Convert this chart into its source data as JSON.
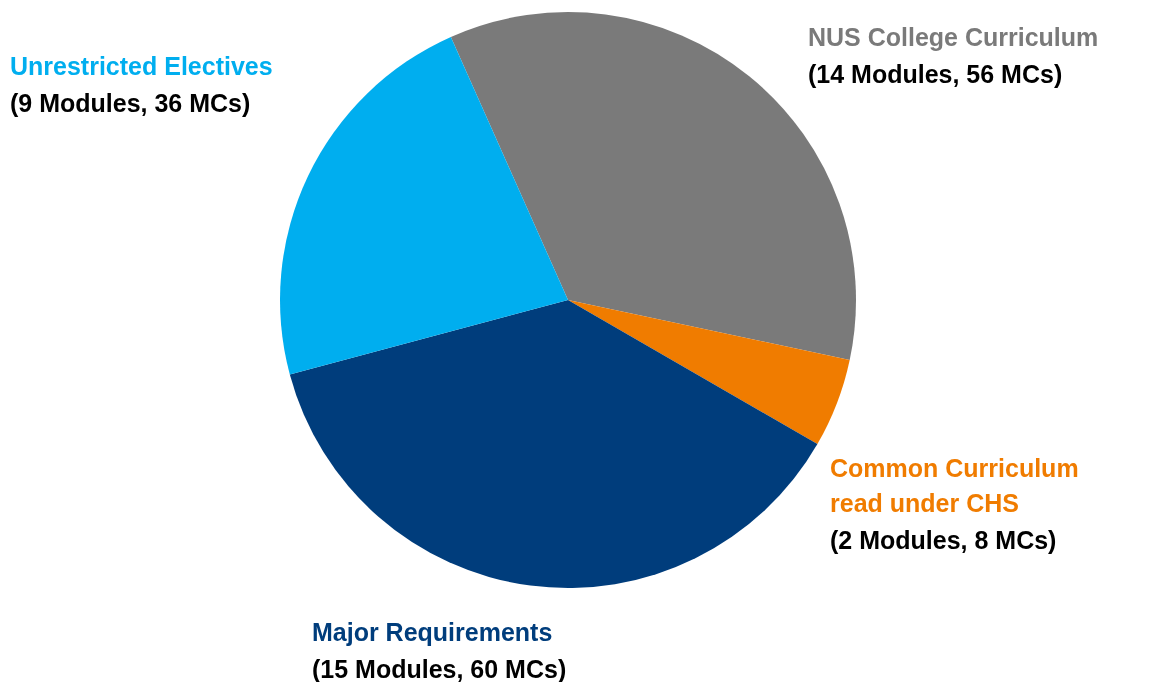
{
  "chart_data": {
    "type": "pie",
    "categories": [
      "NUS College Curriculum",
      "Common Curriculum read under CHS",
      "Major Requirements",
      "Unrestricted Electives"
    ],
    "values": [
      56,
      8,
      60,
      36
    ],
    "colors": [
      "#7a7a7a",
      "#f07c00",
      "#003d7c",
      "#00aeef"
    ],
    "value_labels": [
      "(14 Modules, 56 MCs)",
      "(2 Modules, 8 MCs)",
      "(15 Modules, 60 MCs)",
      "(9 Modules, 36 MCs)"
    ]
  }
}
